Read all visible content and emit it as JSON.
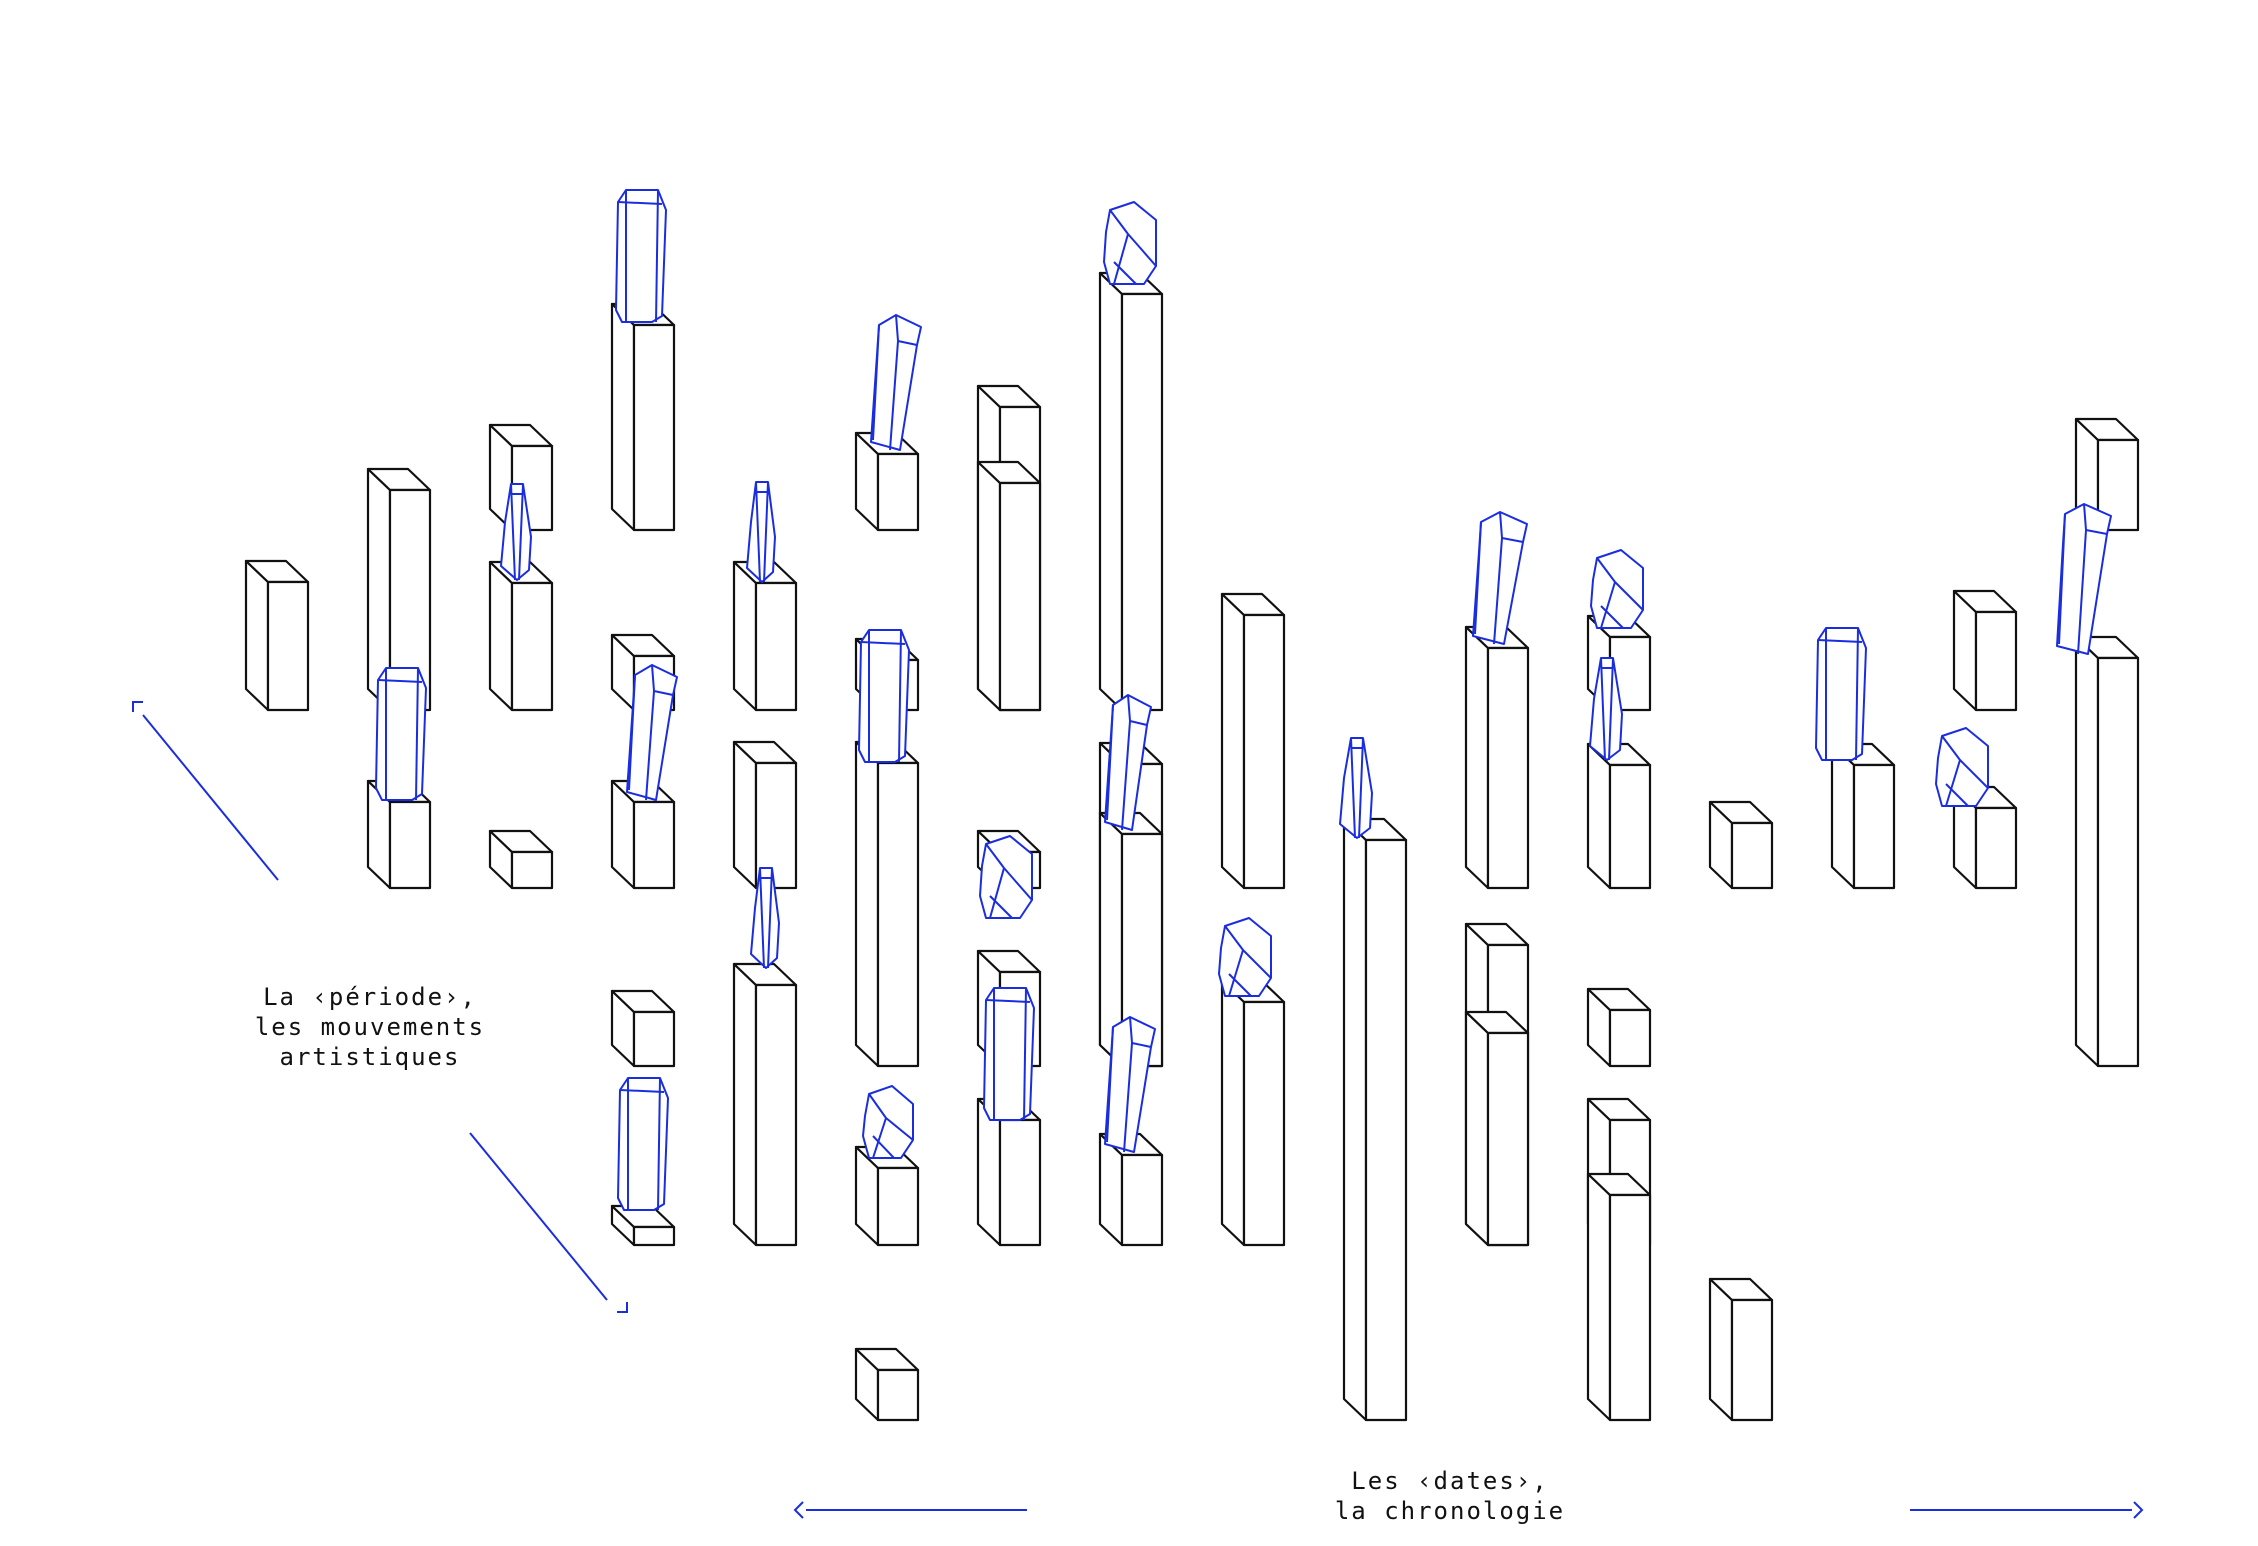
{
  "labels": {
    "period": {
      "line1": "La ‹période›,",
      "line2": "les mouvements",
      "line3": "artistiques"
    },
    "dates": {
      "line1": "Les ‹dates›,",
      "line2": "la chronologie"
    }
  },
  "colors": {
    "blocks": "#111111",
    "accent": "#1a2ee0",
    "background": "#ffffff"
  }
}
